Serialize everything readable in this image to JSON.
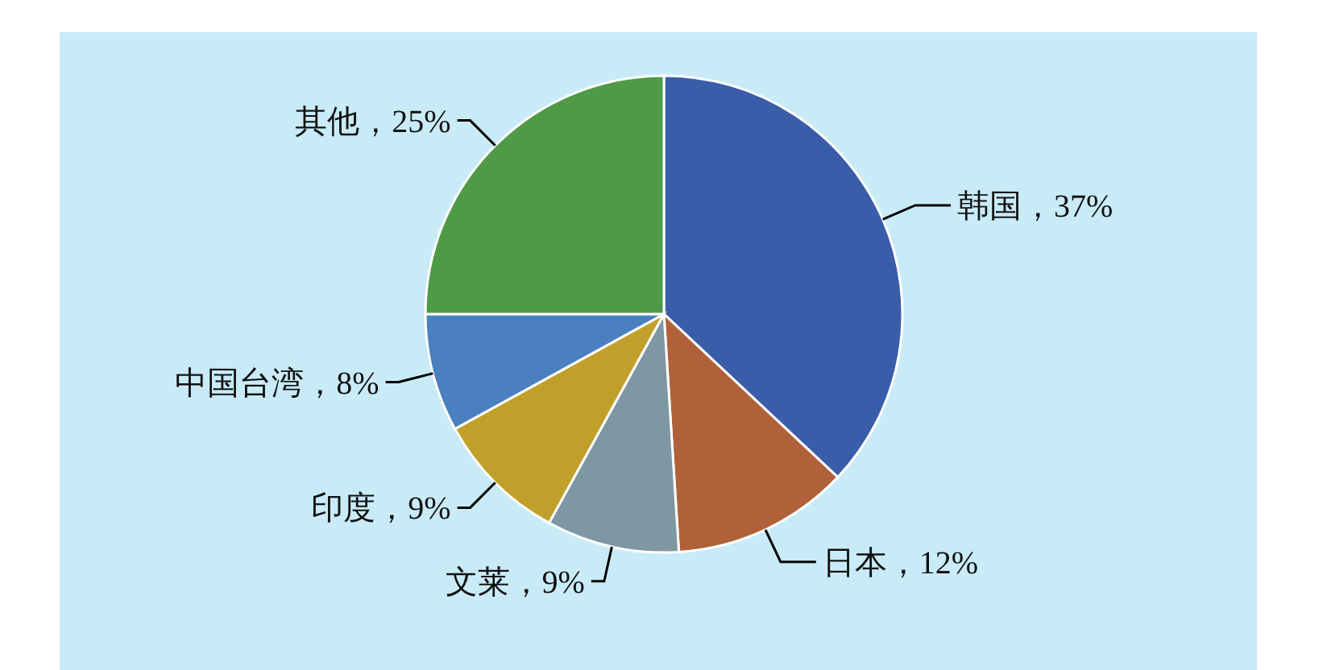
{
  "chart_data": {
    "type": "pie",
    "categories": [
      "韩国",
      "日本",
      "文莱",
      "印度",
      "中国台湾",
      "其他"
    ],
    "values": [
      37,
      12,
      9,
      9,
      8,
      25
    ],
    "value_labels": [
      "37%",
      "12%",
      "9%",
      "9%",
      "8%",
      "25%"
    ],
    "colors": [
      "#3a5da9",
      "#b1613a",
      "#7e97a2",
      "#c0a02a",
      "#4a80c0",
      "#4f9a46"
    ]
  }
}
